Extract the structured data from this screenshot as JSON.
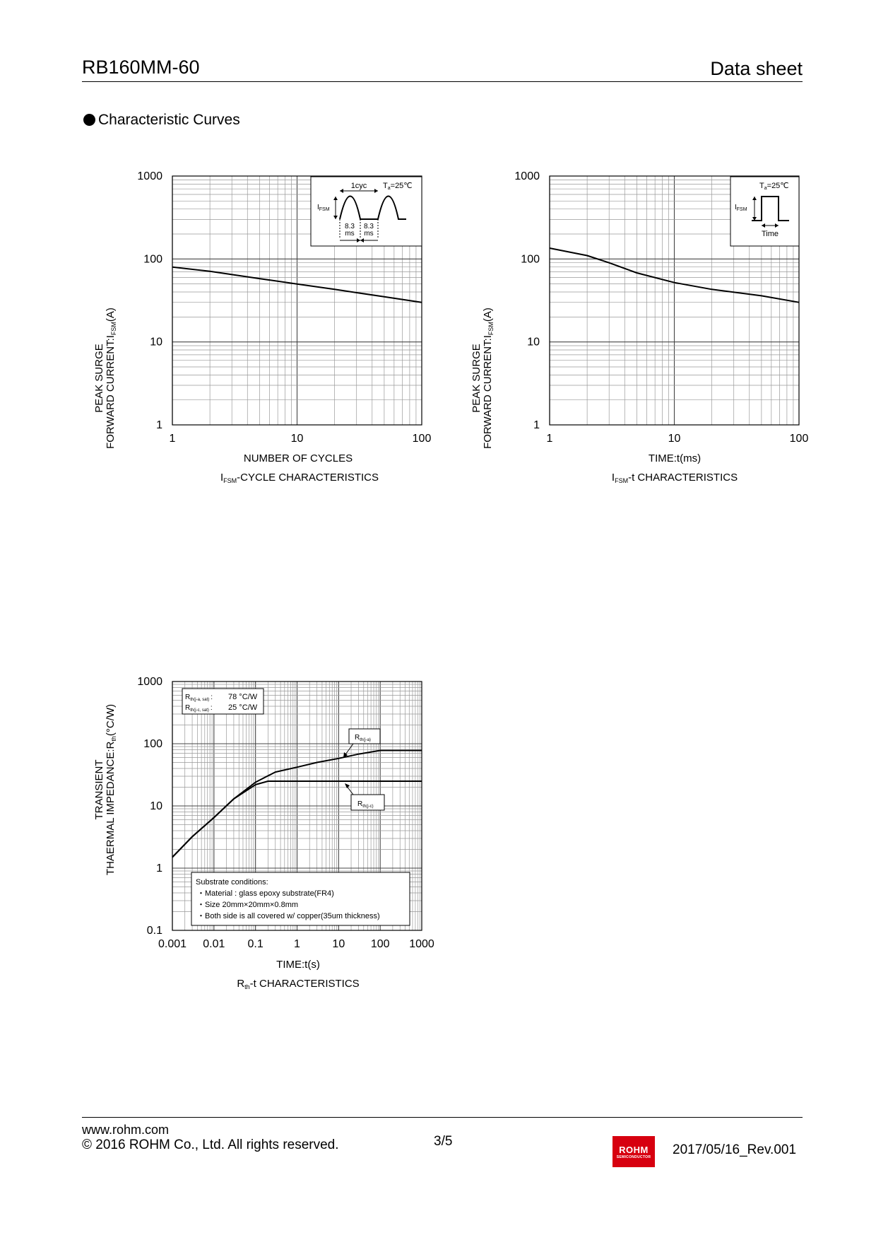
{
  "header": {
    "part_number": "RB160MM-60",
    "doc_type": "Data sheet"
  },
  "section": {
    "title": "Characteristic Curves"
  },
  "charts": {
    "cycle": {
      "ylabel_line1": "PEAK SURGE",
      "ylabel_line2": "FORWARD CURRENT:I",
      "ylabel_sub": "FSM",
      "ylabel_unit": "(A)",
      "xlabel": "NUMBER OF CYCLES",
      "caption_pre": "I",
      "caption_sub": "FSM",
      "caption_post": "-CYCLE  CHARACTERISTICS",
      "inset": {
        "cyc": "1cyc",
        "temp_pre": "T",
        "temp_sub": "a",
        "temp_post": "=25℃",
        "i_pre": "I",
        "i_sub": "FSM",
        "t1_a": "8.3",
        "t1_b": "ms",
        "t2_a": "8.3",
        "t2_b": "ms"
      }
    },
    "time": {
      "ylabel_line1": "PEAK SURGE",
      "ylabel_line2": "FORWARD CURRENT:I",
      "ylabel_sub": "FSM",
      "ylabel_unit": "(A)",
      "xlabel": "TIME:t(ms)",
      "caption_pre": "I",
      "caption_sub": "FSM",
      "caption_post": "-t  CHARACTERISTICS",
      "inset": {
        "temp_pre": "T",
        "temp_sub": "a",
        "temp_post": "=25℃",
        "i_pre": "I",
        "i_sub": "FSM",
        "time": "Time"
      }
    },
    "rth": {
      "ylabel_line1": "TRANSIENT",
      "ylabel_line2": "THAERMAL IMPEDANCE:R",
      "ylabel_sub": "th",
      "ylabel_unit": "(°C/W)",
      "xlabel": "TIME:t(s)",
      "caption_pre": "R",
      "caption_sub": "th",
      "caption_post": "-t  CHARACTERISTICS",
      "info": {
        "ja_pre": "R",
        "ja_sub": "th(j-a, sat)",
        "ja_sep": ":",
        "ja_val": "78 °C/W",
        "jc_pre": "R",
        "jc_sub": "th(j-c, sat)",
        "jc_sep": ":",
        "jc_val": "25 °C/W"
      },
      "label_ja_pre": "R",
      "label_ja_sub": "th(j-a)",
      "label_jc_pre": "R",
      "label_jc_sub": "th(j-c)",
      "substrate": {
        "title": "Substrate  conditions:",
        "lines": [
          "・Material : glass epoxy substrate(FR4)",
          "・Size 20mm×20mm×0.8mm",
          "・Both side is all covered w/ copper(35um thickness)"
        ]
      }
    }
  },
  "chart_data": [
    {
      "type": "line",
      "x_scale": "log",
      "y_scale": "log",
      "xlim": [
        1,
        100
      ],
      "ylim": [
        1,
        1000
      ],
      "x_ticks": [
        "1",
        "10",
        "100"
      ],
      "y_ticks": [
        "1",
        "10",
        "100",
        "1000"
      ],
      "xlabel": "NUMBER OF CYCLES",
      "ylabel": "PEAK SURGE FORWARD CURRENT:IFSM(A)",
      "grid": true,
      "series": [
        {
          "x": [
            1,
            2,
            5,
            10,
            20,
            50,
            100
          ],
          "y": [
            80,
            71,
            58,
            50,
            43,
            35,
            30
          ]
        }
      ]
    },
    {
      "type": "line",
      "x_scale": "log",
      "y_scale": "log",
      "xlim": [
        1,
        100
      ],
      "ylim": [
        1,
        1000
      ],
      "x_ticks": [
        "1",
        "10",
        "100"
      ],
      "y_ticks": [
        "1",
        "10",
        "100",
        "1000"
      ],
      "xlabel": "TIME:t(ms)",
      "ylabel": "PEAK SURGE FORWARD CURRENT:IFSM(A)",
      "grid": true,
      "series": [
        {
          "x": [
            1,
            2,
            3,
            5,
            10,
            20,
            50,
            100
          ],
          "y": [
            135,
            110,
            90,
            68,
            52,
            43,
            36,
            30
          ]
        }
      ]
    },
    {
      "type": "line",
      "x_scale": "log",
      "y_scale": "log",
      "xlim": [
        0.001,
        1000
      ],
      "ylim": [
        0.1,
        1000
      ],
      "x_ticks": [
        "0.001",
        "0.01",
        "0.1",
        "1",
        "10",
        "100",
        "1000"
      ],
      "y_ticks": [
        "0.1",
        "1",
        "10",
        "100",
        "1000"
      ],
      "xlabel": "TIME:t(s)",
      "ylabel": "TRANSIENT THAERMAL IMPEDANCE:Rth(°C/W)",
      "grid": true,
      "series": [
        {
          "name": "Rth(j-a)",
          "x": [
            0.001,
            0.003,
            0.01,
            0.03,
            0.1,
            0.3,
            1,
            3,
            10,
            30,
            100,
            300,
            1000
          ],
          "y": [
            1.5,
            3.2,
            6.5,
            13,
            24,
            35,
            42,
            50,
            58,
            68,
            78,
            78,
            78
          ]
        },
        {
          "name": "Rth(j-c)",
          "x": [
            0.001,
            0.003,
            0.01,
            0.03,
            0.1,
            0.2,
            0.3,
            1,
            10,
            100,
            1000
          ],
          "y": [
            1.5,
            3.2,
            6.5,
            13,
            22,
            25,
            25,
            25,
            25,
            25,
            25
          ]
        }
      ]
    }
  ],
  "footer": {
    "url": "www.rohm.com",
    "copyright": "© 2016 ROHM Co., Ltd. All rights reserved.",
    "page": "3/5",
    "revision": "2017/05/16_Rev.001",
    "logo_text": "ROHM",
    "logo_sub": "SEMICONDUCTOR"
  }
}
